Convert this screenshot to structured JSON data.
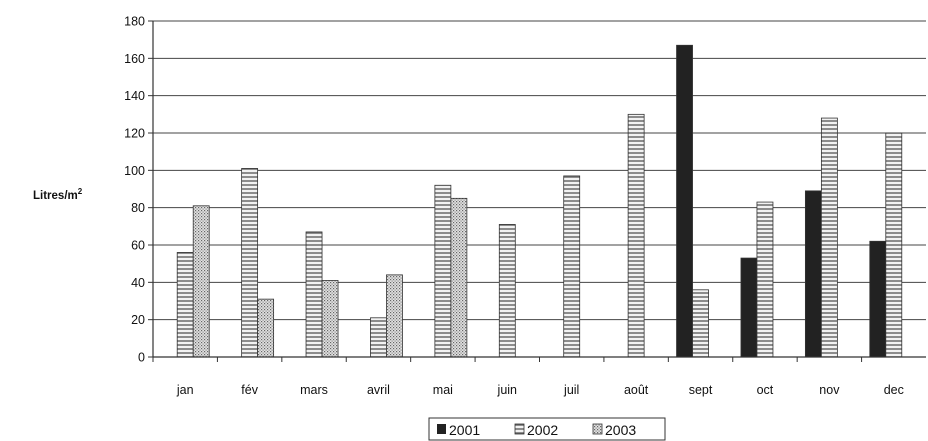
{
  "chart_data": {
    "type": "bar",
    "ylabel_main": "Litres/m",
    "ylabel_sup": "2",
    "ylim": [
      0,
      180
    ],
    "yticks": [
      0,
      20,
      40,
      60,
      80,
      100,
      120,
      140,
      160,
      180
    ],
    "categories": [
      "jan",
      "fév",
      "mars",
      "avril",
      "mai",
      "juin",
      "juil",
      "août",
      "sept",
      "oct",
      "nov",
      "dec"
    ],
    "series": [
      {
        "name": "2001",
        "values": [
          null,
          null,
          null,
          null,
          null,
          null,
          null,
          null,
          167,
          53,
          89,
          62
        ]
      },
      {
        "name": "2002",
        "values": [
          56,
          101,
          67,
          21,
          92,
          71,
          97,
          130,
          36,
          83,
          128,
          120
        ]
      },
      {
        "name": "2003",
        "values": [
          81,
          31,
          41,
          44,
          85,
          null,
          null,
          null,
          null,
          null,
          null,
          null
        ]
      }
    ],
    "grid": true,
    "legend": "bottom-center",
    "colors": {
      "s2001": "#222222",
      "hatch": "#555555",
      "axis": "#333333",
      "grid": "#444444"
    }
  }
}
